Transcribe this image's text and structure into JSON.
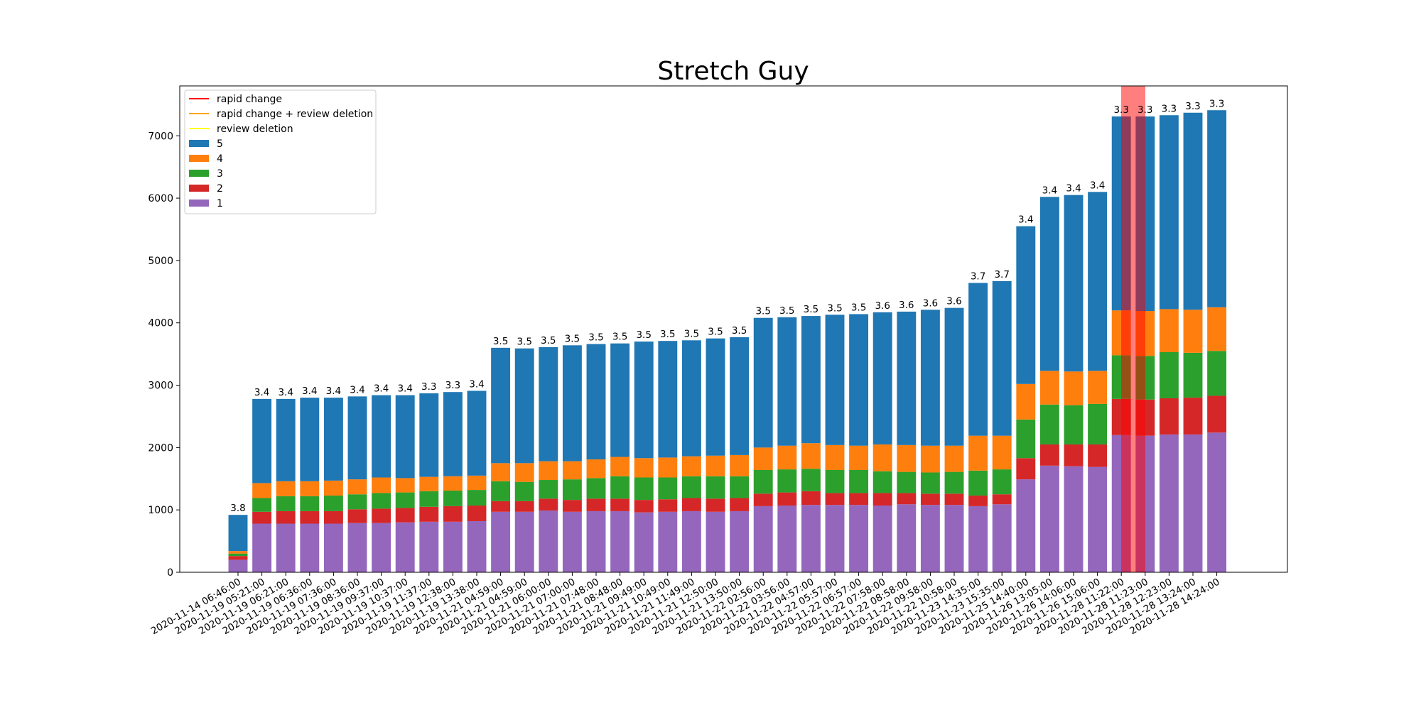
{
  "chart_data": {
    "type": "bar",
    "stacked": true,
    "title": "Stretch Guy",
    "xlabel": "",
    "ylabel": "",
    "ylim": [
      0,
      7800
    ],
    "yticks": [
      0,
      1000,
      2000,
      3000,
      4000,
      5000,
      6000,
      7000
    ],
    "grid": false,
    "legend_position": "top-left",
    "categories": [
      "2020-11-14 06:46:00",
      "2020-11-19 05:21:00",
      "2020-11-19 06:21:00",
      "2020-11-19 06:36:00",
      "2020-11-19 07:36:00",
      "2020-11-19 08:36:00",
      "2020-11-19 09:37:00",
      "2020-11-19 10:37:00",
      "2020-11-19 11:37:00",
      "2020-11-19 12:38:00",
      "2020-11-19 13:38:00",
      "2020-11-21 04:59:00",
      "2020-11-21 04:59:00",
      "2020-11-21 06:00:00",
      "2020-11-21 07:00:00",
      "2020-11-21 07:48:00",
      "2020-11-21 08:48:00",
      "2020-11-21 09:49:00",
      "2020-11-21 10:49:00",
      "2020-11-21 11:49:00",
      "2020-11-21 12:50:00",
      "2020-11-21 13:50:00",
      "2020-11-22 02:56:00",
      "2020-11-22 03:56:00",
      "2020-11-22 04:57:00",
      "2020-11-22 05:57:00",
      "2020-11-22 06:57:00",
      "2020-11-22 07:58:00",
      "2020-11-22 08:58:00",
      "2020-11-22 09:58:00",
      "2020-11-22 10:58:00",
      "2020-11-23 14:35:00",
      "2020-11-23 15:35:00",
      "2020-11-25 14:40:00",
      "2020-11-26 13:05:00",
      "2020-11-26 14:06:00",
      "2020-11-26 15:06:00",
      "2020-11-28 11:22:00",
      "2020-11-28 11:23:00",
      "2020-11-28 12:23:00",
      "2020-11-28 13:24:00",
      "2020-11-28 14:24:00"
    ],
    "series": [
      {
        "name": "1",
        "color": "#9467bd",
        "values": [
          200,
          780,
          780,
          780,
          780,
          790,
          790,
          800,
          810,
          810,
          820,
          970,
          970,
          990,
          970,
          980,
          980,
          960,
          970,
          980,
          970,
          980,
          1060,
          1070,
          1080,
          1080,
          1080,
          1070,
          1090,
          1080,
          1080,
          1060,
          1090,
          1490,
          1710,
          1700,
          1690,
          2200,
          2190,
          2210,
          2210,
          2240
        ]
      },
      {
        "name": "2",
        "color": "#d62728",
        "values": [
          60,
          190,
          200,
          200,
          200,
          220,
          230,
          230,
          240,
          250,
          250,
          170,
          170,
          190,
          190,
          200,
          200,
          200,
          200,
          210,
          210,
          210,
          200,
          210,
          220,
          190,
          190,
          200,
          180,
          180,
          180,
          170,
          160,
          340,
          340,
          350,
          360,
          580,
          580,
          580,
          590,
          590
        ]
      },
      {
        "name": "3",
        "color": "#2ca02c",
        "values": [
          40,
          220,
          240,
          240,
          250,
          240,
          250,
          250,
          250,
          250,
          250,
          320,
          310,
          300,
          330,
          330,
          360,
          360,
          350,
          350,
          360,
          350,
          380,
          370,
          360,
          370,
          370,
          350,
          340,
          340,
          350,
          400,
          400,
          620,
          640,
          630,
          650,
          700,
          700,
          740,
          720,
          720
        ]
      },
      {
        "name": "4",
        "color": "#ff7f0e",
        "values": [
          40,
          240,
          240,
          240,
          240,
          240,
          250,
          230,
          230,
          230,
          230,
          290,
          300,
          300,
          290,
          300,
          310,
          310,
          320,
          320,
          330,
          340,
          360,
          380,
          410,
          400,
          390,
          430,
          430,
          430,
          420,
          560,
          540,
          570,
          540,
          540,
          530,
          720,
          720,
          690,
          690,
          700
        ]
      },
      {
        "name": "5",
        "color": "#1f77b4",
        "values": [
          580,
          1350,
          1320,
          1340,
          1330,
          1330,
          1320,
          1330,
          1340,
          1350,
          1360,
          1850,
          1840,
          1830,
          1860,
          1850,
          1820,
          1870,
          1870,
          1860,
          1880,
          1890,
          2080,
          2060,
          2040,
          2090,
          2110,
          2120,
          2140,
          2180,
          2210,
          2450,
          2480,
          2530,
          2790,
          2830,
          2870,
          3110,
          3120,
          3110,
          3160,
          3160
        ]
      }
    ],
    "avg_labels": [
      "3.8",
      "3.4",
      "3.4",
      "3.4",
      "3.4",
      "3.4",
      "3.4",
      "3.4",
      "3.3",
      "3.3",
      "3.4",
      "3.5",
      "3.5",
      "3.5",
      "3.5",
      "3.5",
      "3.5",
      "3.5",
      "3.5",
      "3.5",
      "3.5",
      "3.5",
      "3.5",
      "3.5",
      "3.5",
      "3.5",
      "3.5",
      "3.6",
      "3.6",
      "3.6",
      "3.6",
      "3.7",
      "3.7",
      "3.4",
      "3.4",
      "3.4",
      "3.4",
      "3.3",
      "3.3",
      "3.3",
      "3.3",
      "3.3"
    ],
    "highlights": [
      {
        "type": "rapid change",
        "index": 37.5,
        "color": "#ff0000"
      }
    ],
    "legend": [
      {
        "label": "rapid change",
        "kind": "line",
        "color": "#ff0000"
      },
      {
        "label": "rapid change + review deletion",
        "kind": "line",
        "color": "#ffa500"
      },
      {
        "label": "review deletion",
        "kind": "line",
        "color": "#ffff00"
      },
      {
        "label": "5",
        "kind": "patch",
        "color": "#1f77b4"
      },
      {
        "label": "4",
        "kind": "patch",
        "color": "#ff7f0e"
      },
      {
        "label": "3",
        "kind": "patch",
        "color": "#2ca02c"
      },
      {
        "label": "2",
        "kind": "patch",
        "color": "#d62728"
      },
      {
        "label": "1",
        "kind": "patch",
        "color": "#9467bd"
      }
    ]
  }
}
